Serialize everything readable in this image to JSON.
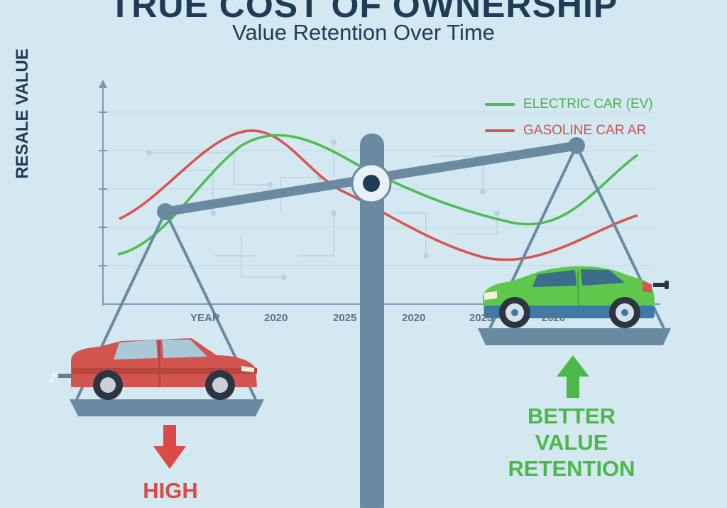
{
  "title": "TRUE COST OF OWNERSHIP",
  "subtitle": "Value Retention Over Time",
  "ylabel": "RESALE VALUE",
  "legend": [
    {
      "label": "ELECTRIC CAR (EV)",
      "color": "#4cbd4e"
    },
    {
      "label": "GASOLINE CAR AR",
      "color": "#d9534f"
    }
  ],
  "xticks": [
    "YEAR",
    "2020",
    "2025",
    "2020",
    "2025",
    "2020"
  ],
  "left_callout": {
    "text": "HIGH",
    "color": "#dd4a45"
  },
  "right_callout": {
    "lines": [
      "BETTER",
      "VALUE",
      "RETENTION"
    ],
    "color": "#4cb84a"
  },
  "colors": {
    "background": "#d3e8f1",
    "scale": "#6a8aa2",
    "ev": "#4cbd4e",
    "gas": "#d9534f",
    "gas_car": "#d2544e",
    "ev_car": "#5ec84d"
  }
}
